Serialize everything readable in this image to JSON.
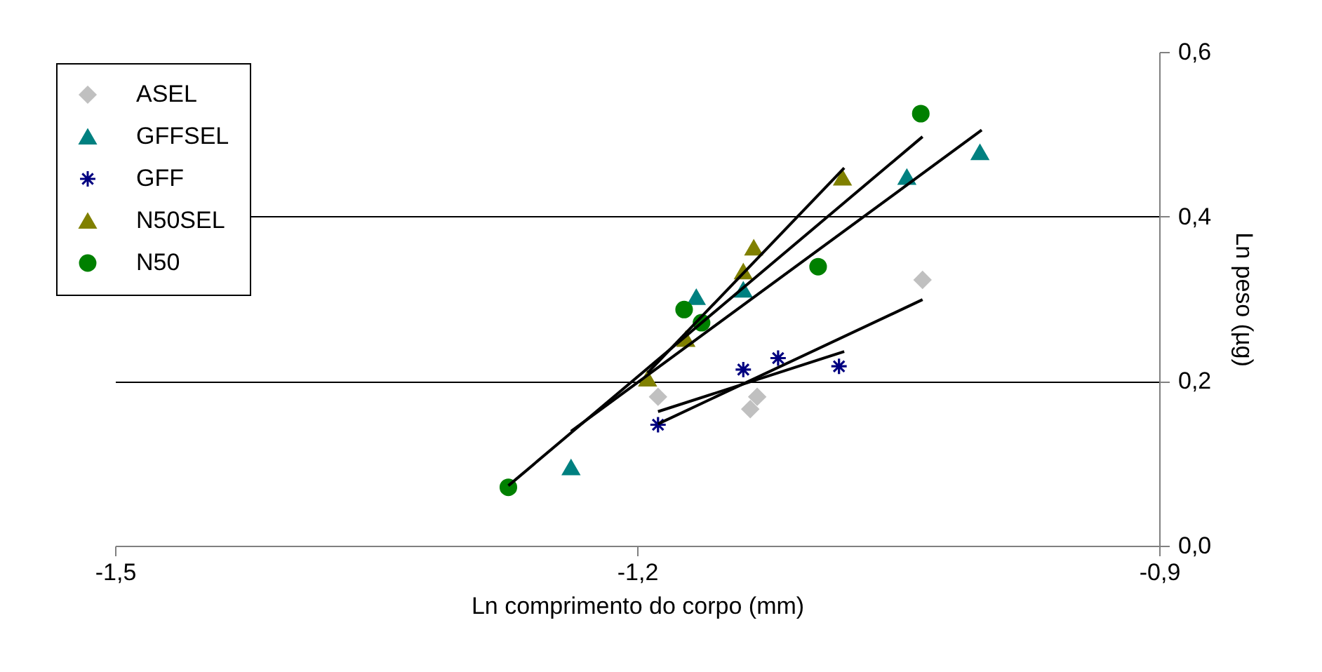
{
  "chart_data": {
    "type": "scatter",
    "xlabel": "Ln comprimento do corpo (mm)",
    "ylabel": "Ln peso (µg)",
    "xlim": [
      -1.5,
      -0.9
    ],
    "xticks": [
      {
        "value": -1.5,
        "label": "-1,5"
      },
      {
        "value": -1.2,
        "label": "-1,2"
      },
      {
        "value": -0.9,
        "label": "-0,9"
      }
    ],
    "ylim": [
      0,
      0.6
    ],
    "yticks": [
      {
        "value": 0,
        "label": "0,0"
      },
      {
        "value": 0.2,
        "label": "0,2"
      },
      {
        "value": 0.4,
        "label": "0,4"
      },
      {
        "value": 0.6,
        "label": "0,6"
      }
    ],
    "grid": "y",
    "legend": "top left",
    "series": [
      {
        "name": "ASEL",
        "type": "scatter",
        "marker": "diamond",
        "color": "#c0c0c0",
        "x": [
          -1.188,
          -1.131,
          -1.135,
          -1.036
        ],
        "values": [
          0.181,
          0.181,
          0.166,
          0.323
        ]
      },
      {
        "name": "GFFSEL",
        "type": "scatter",
        "marker": "triangle",
        "color": "#008080",
        "x": [
          -1.238,
          -1.166,
          -1.139,
          -1.045,
          -1.003
        ],
        "values": [
          0.095,
          0.302,
          0.311,
          0.448,
          0.478
        ]
      },
      {
        "name": "GFF",
        "type": "scatter",
        "marker": "cross",
        "color": "#000080",
        "x": [
          -1.188,
          -1.139,
          -1.119,
          -1.084
        ],
        "values": [
          0.147,
          0.214,
          0.228,
          0.218
        ]
      },
      {
        "name": "N50SEL",
        "type": "scatter",
        "marker": "triangle",
        "color": "#808000",
        "x": [
          -1.194,
          -1.172,
          -1.139,
          -1.133,
          -1.082
        ],
        "values": [
          0.203,
          0.251,
          0.333,
          0.362,
          0.447
        ]
      },
      {
        "name": "N50",
        "type": "scatter",
        "marker": "circle",
        "color": "#008000",
        "x": [
          -1.274,
          -1.173,
          -1.163,
          -1.096,
          -1.037
        ],
        "values": [
          0.071,
          0.287,
          0.271,
          0.339,
          0.525
        ]
      },
      {
        "type": "line",
        "line_style": "solid",
        "color": "#000000",
        "x": [
          -1.188,
          -1.036
        ],
        "values": [
          0.148,
          0.299
        ]
      },
      {
        "type": "line",
        "line_style": "solid",
        "color": "#000000",
        "x": [
          -1.238,
          -1.002
        ],
        "values": [
          0.139,
          0.505
        ]
      },
      {
        "type": "line",
        "line_style": "solid",
        "color": "#000000",
        "x": [
          -1.188,
          -1.081
        ],
        "values": [
          0.163,
          0.236
        ]
      },
      {
        "type": "line",
        "line_style": "solid",
        "color": "#000000",
        "x": [
          -1.194,
          -1.081
        ],
        "values": [
          0.21,
          0.459
        ]
      },
      {
        "type": "line",
        "line_style": "solid",
        "color": "#000000",
        "x": [
          -1.274,
          -1.036
        ],
        "values": [
          0.073,
          0.497
        ]
      }
    ]
  }
}
